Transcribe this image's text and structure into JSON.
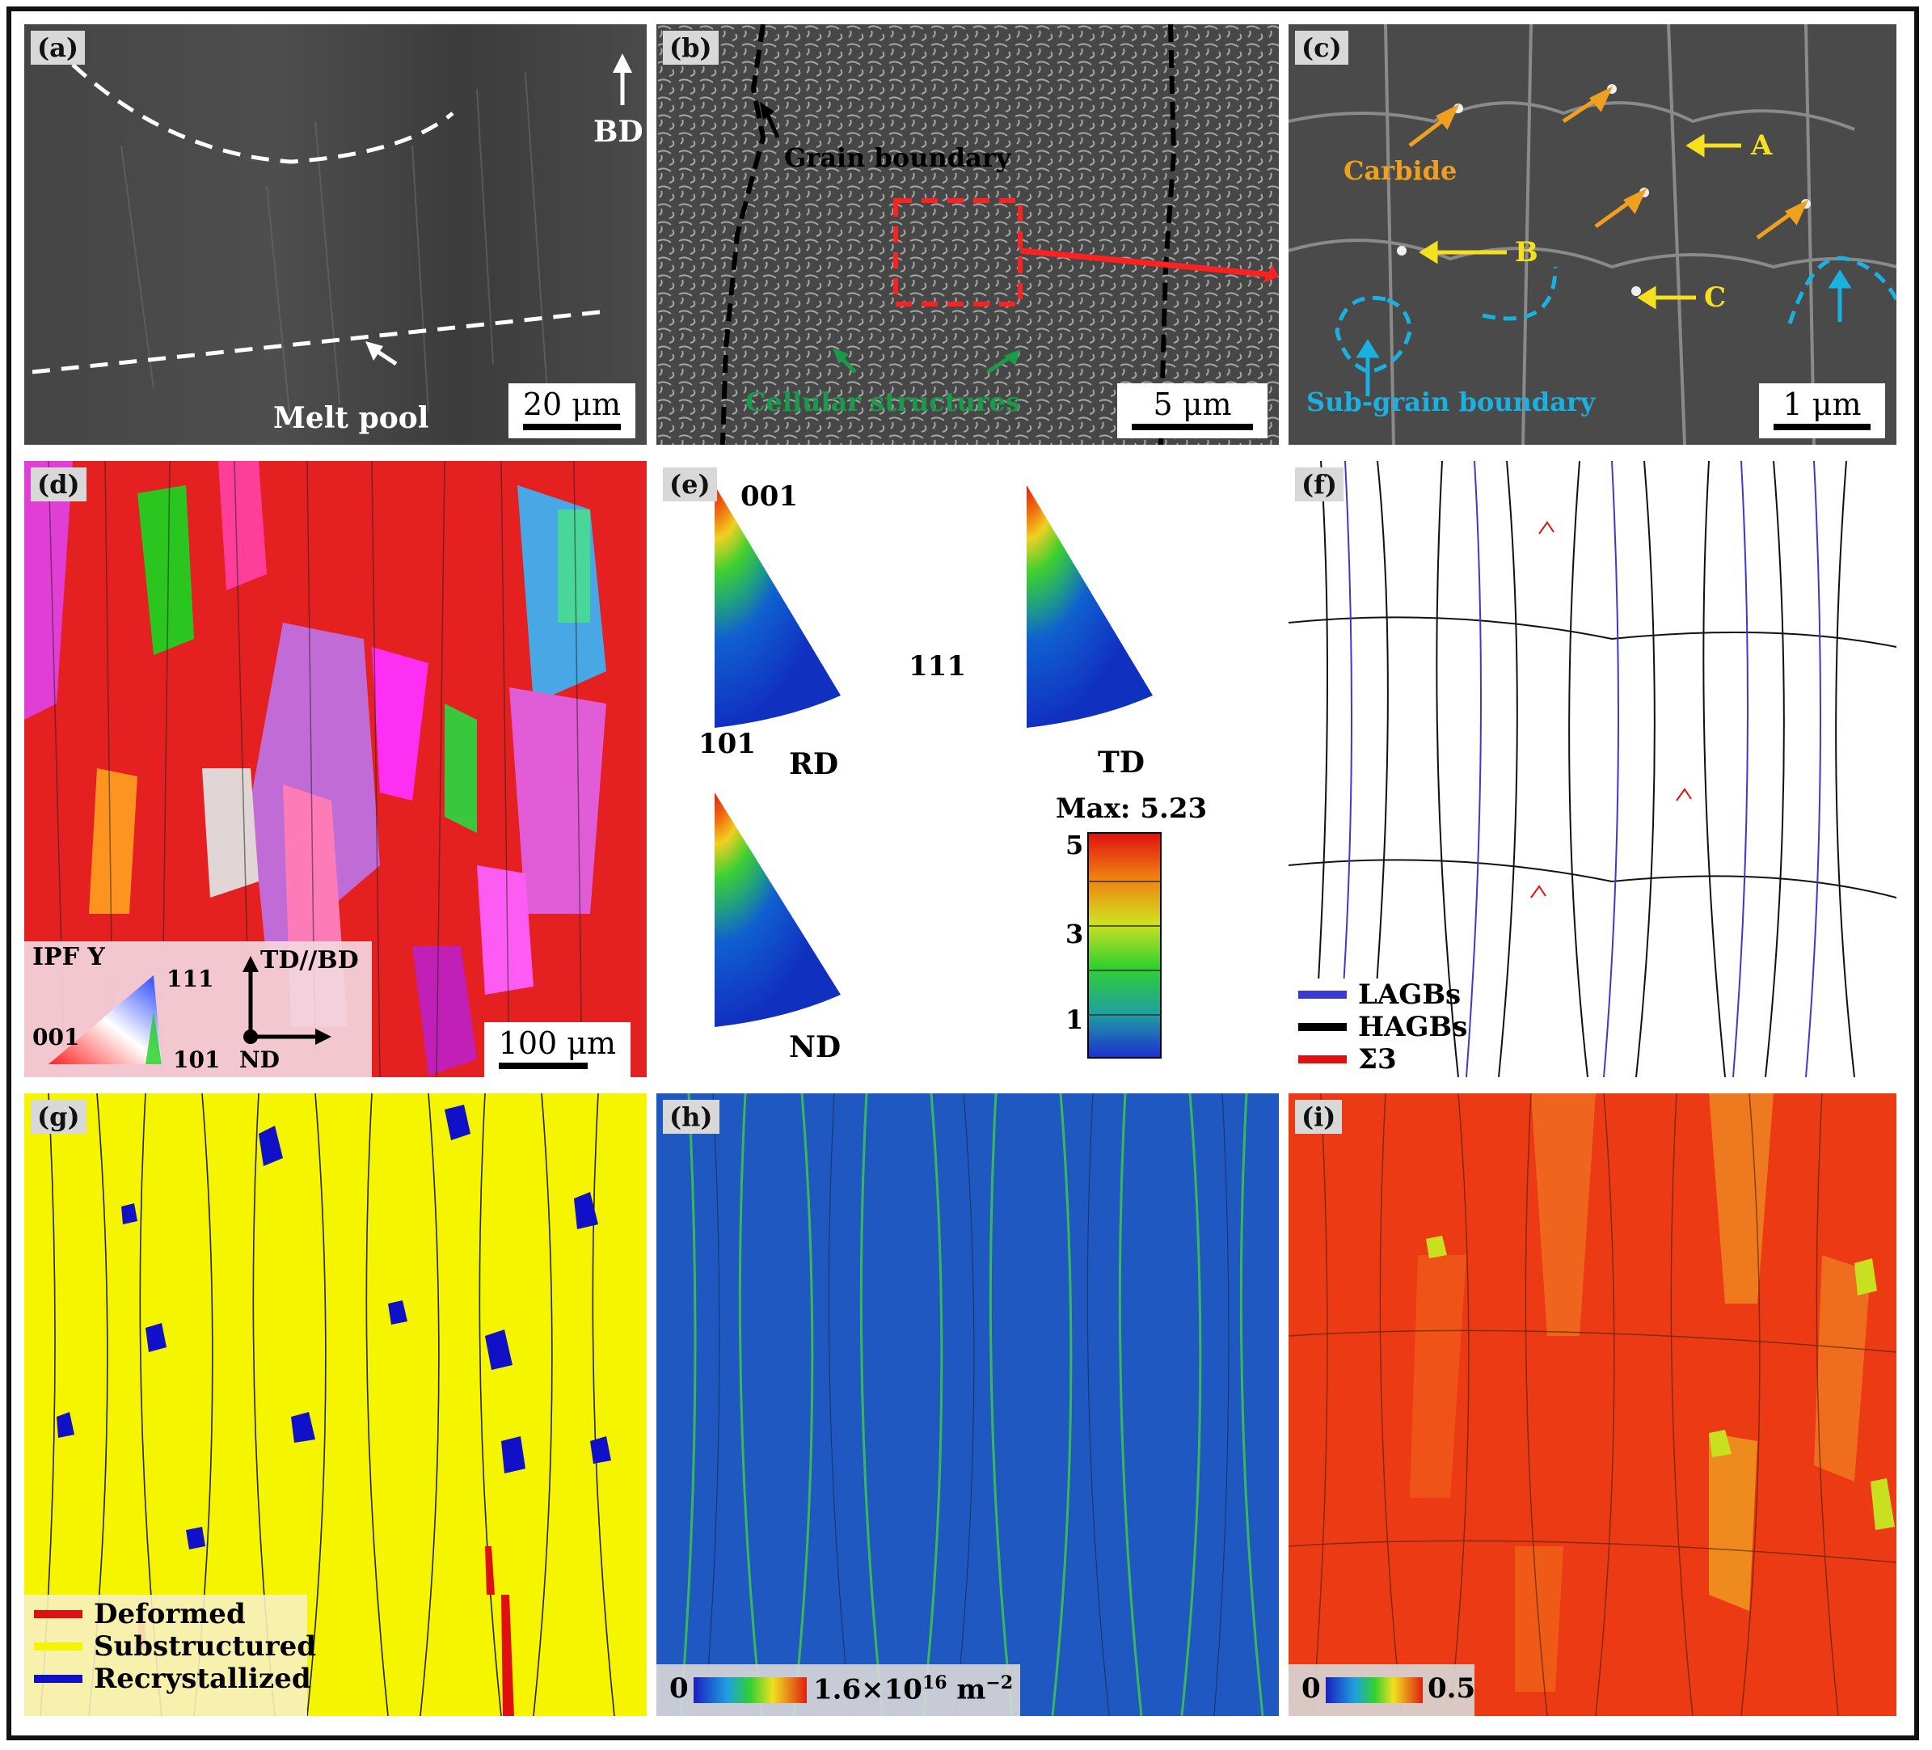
{
  "panels": {
    "a": {
      "label": "(a)",
      "scale": "20 μm",
      "bd": "BD",
      "melt_pool": "Melt pool"
    },
    "b": {
      "label": "(b)",
      "scale": "5 μm",
      "grain_boundary": "Grain boundary",
      "cellular": "Cellular structures"
    },
    "c": {
      "label": "(c)",
      "scale": "1 μm",
      "carbide": "Carbide",
      "A": "A",
      "B": "B",
      "C": "C",
      "sub_grain": "Sub-grain boundary"
    },
    "d": {
      "label": "(d)",
      "scale": "100 μm",
      "ipf": "IPF Y",
      "v111": "111",
      "v001": "001",
      "v101": "101",
      "td_bd": "TD//BD",
      "nd": "ND"
    },
    "e": {
      "label": "(e)",
      "p001": "001",
      "p111": "111",
      "p101": "101",
      "rd": "RD",
      "td": "TD",
      "nd": "ND",
      "max": "Max: 5.23",
      "ticks": [
        "5",
        "3",
        "1"
      ]
    },
    "f": {
      "label": "(f)",
      "legend": [
        {
          "name": "LAGBs",
          "color": "#3a3ad0"
        },
        {
          "name": "HAGBs",
          "color": "#000000"
        },
        {
          "name": "Σ3",
          "color": "#e01010"
        }
      ]
    },
    "g": {
      "label": "(g)",
      "legend": [
        {
          "name": "Deformed",
          "color": "#e01010"
        },
        {
          "name": "Substructured",
          "color": "#f5f500"
        },
        {
          "name": "Recrystallized",
          "color": "#1010c8"
        }
      ]
    },
    "h": {
      "label": "(h)",
      "min": "0",
      "max": "1.6×10",
      "exp": "16",
      "unit": " m",
      "unit_exp": "−2"
    },
    "i": {
      "label": "(i)",
      "min": "0",
      "max": "0.5"
    }
  }
}
